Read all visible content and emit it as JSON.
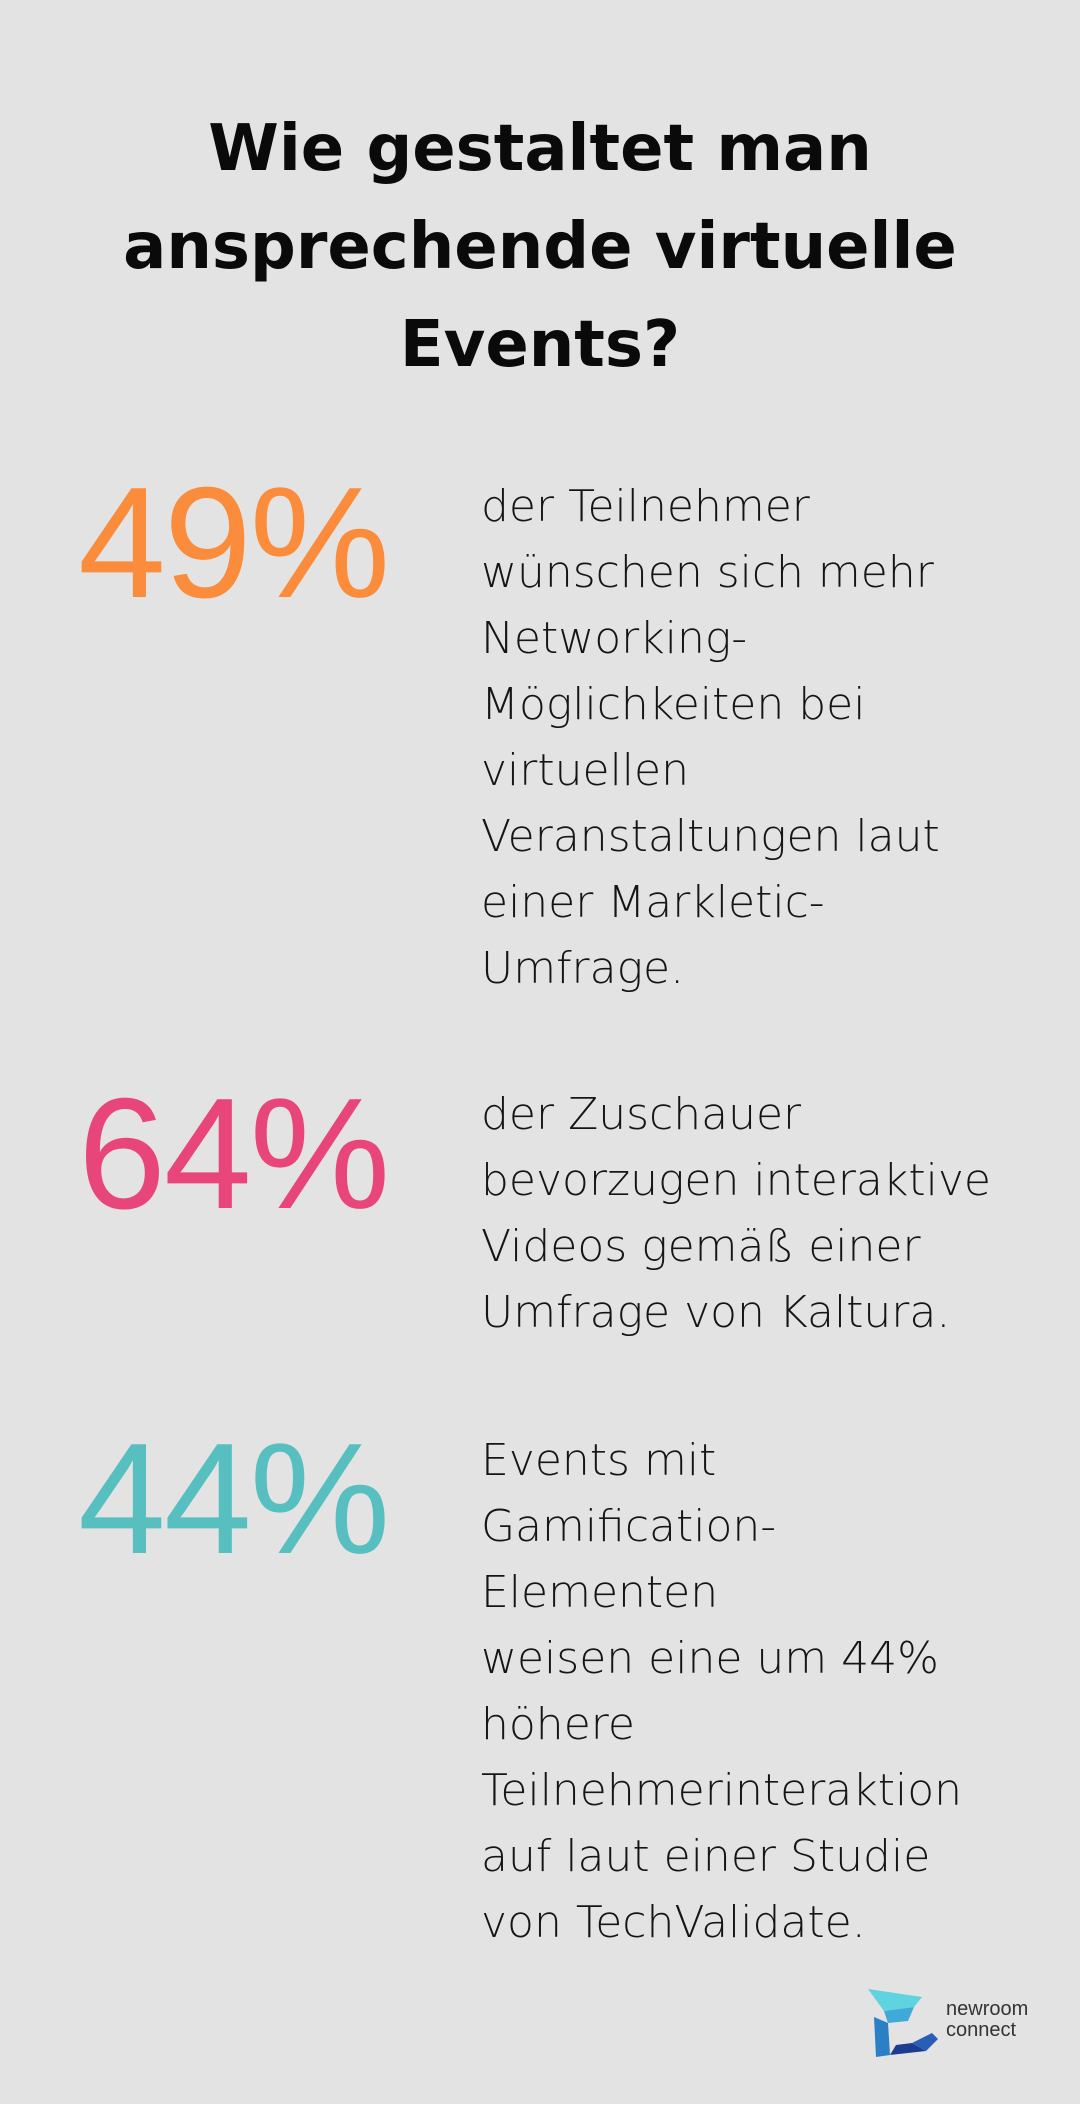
{
  "title": "Wie gestaltet man\nansprechende virtuelle\nEvents?",
  "stats": [
    {
      "value": "49%",
      "color": "#fb8c3c",
      "text": "der Teilnehmer\nwünschen sich mehr\nNetworking-\nMöglichkeiten bei\nvirtuellen\nVeranstaltungen laut\neiner Markletic-\nUmfrage."
    },
    {
      "value": "64%",
      "color": "#e8457a",
      "text": "der Zuschauer\nbevorzugen interaktive\nVideos gemäß einer\nUmfrage von Kaltura."
    },
    {
      "value": "44%",
      "color": "#57bfbf",
      "text": "Events mit\nGamification-Elementen\nweisen eine um 44%\nhöhere\nTeilnehmerinteraktion\nauf laut einer Studie\nvon TechValidate."
    }
  ],
  "logo": {
    "line1": "newroom",
    "line2": "connect",
    "icon": "newroom-connect-logo-icon",
    "colors": [
      "#5fd3e0",
      "#2b7fc4",
      "#1b3c8f"
    ]
  }
}
